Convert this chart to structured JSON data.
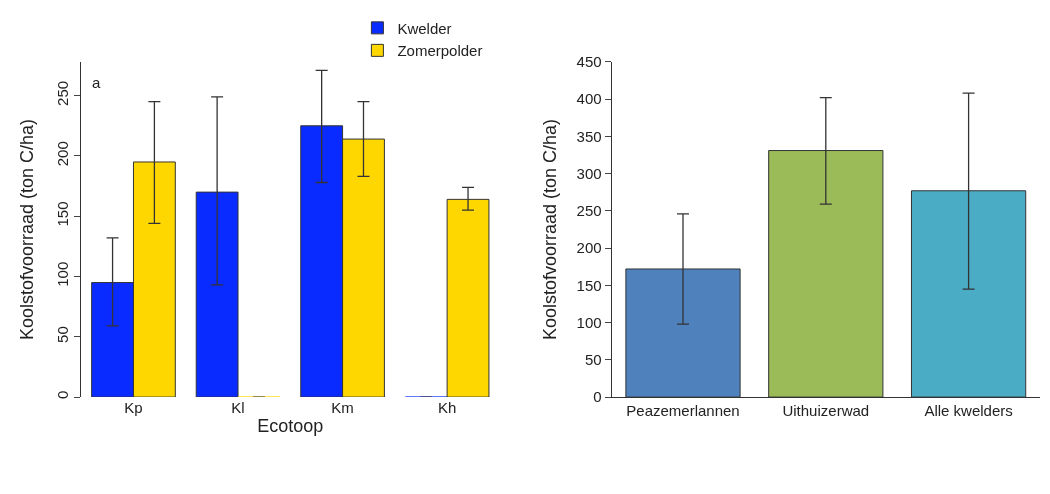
{
  "chart_data": [
    {
      "type": "bar",
      "xlabel": "Ecotoop",
      "ylabel": "Koolstofvoorraad (ton C/ha)",
      "categories": [
        "Kp",
        "Kl",
        "Km",
        "Kh"
      ],
      "series": [
        {
          "name": "Kwelder",
          "color": "#0a2bff",
          "values": [
            95,
            170,
            225,
            0
          ],
          "errors": [
            [
              59,
              132
            ],
            [
              93,
              249
            ],
            [
              178,
              271
            ],
            null
          ]
        },
        {
          "name": "Zomerpolder",
          "color": "#ffd700",
          "values": [
            195,
            0,
            214,
            164
          ],
          "errors": [
            [
              144,
              245
            ],
            null,
            [
              183,
              245
            ],
            [
              155,
              174
            ]
          ]
        }
      ],
      "ylim": [
        0,
        278
      ],
      "yticks": [
        0,
        50,
        100,
        150,
        200,
        250
      ],
      "legend": "top",
      "annotations": [
        "a"
      ]
    },
    {
      "type": "bar",
      "ylabel": "Koolstofvoorraad (ton C/ha)",
      "categories": [
        "Peazemerlannen",
        "Uithuizerwad",
        "Alle kwelders"
      ],
      "values": [
        172,
        331,
        277
      ],
      "colors": [
        "#4f81bd",
        "#9bbb59",
        "#4bacc6"
      ],
      "errors": [
        [
          98,
          246
        ],
        [
          259,
          402
        ],
        [
          145,
          408
        ]
      ],
      "ylim": [
        0,
        450
      ],
      "yticks": [
        0,
        50,
        100,
        150,
        200,
        250,
        300,
        350,
        400,
        450
      ]
    }
  ]
}
